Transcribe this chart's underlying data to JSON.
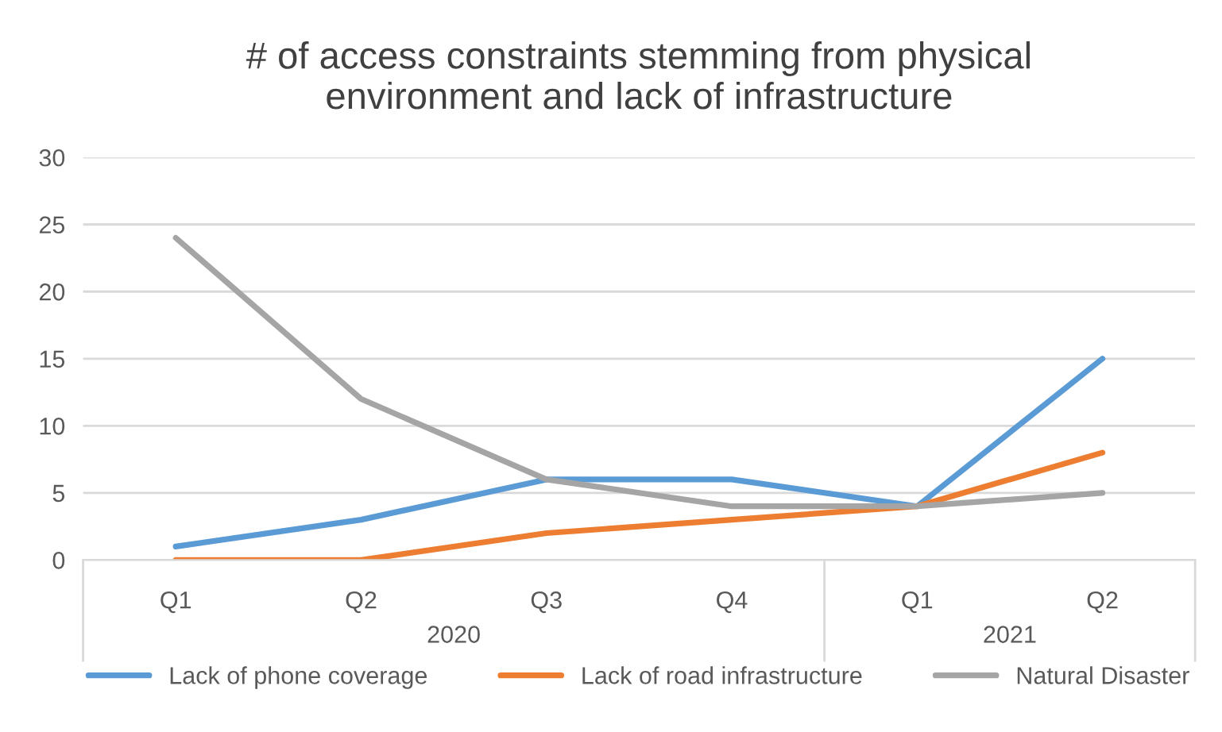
{
  "chart_data": {
    "type": "line",
    "title": "# of access constraints stemming from physical\nenvironment and lack of infrastructure",
    "categories": [
      "Q1",
      "Q2",
      "Q3",
      "Q4",
      "Q1",
      "Q2"
    ],
    "annotations": [
      "2020",
      "2021"
    ],
    "series": [
      {
        "name": "Lack of phone coverage",
        "color": "#5b9bd5",
        "values": [
          1,
          3,
          6,
          6,
          4,
          15
        ]
      },
      {
        "name": "Lack of road infrastructure",
        "color": "#ed7d31",
        "values": [
          0,
          0,
          2,
          3,
          4,
          8
        ]
      },
      {
        "name": "Natural Disaster",
        "color": "#a5a5a5",
        "values": [
          24,
          12,
          6,
          4,
          4,
          5
        ]
      }
    ],
    "ylim": [
      0,
      30
    ],
    "yticks": [
      0,
      5,
      10,
      15,
      20,
      25,
      30
    ],
    "grid": "y",
    "legend": "bottom",
    "marker": "none",
    "line_style": "solid"
  }
}
